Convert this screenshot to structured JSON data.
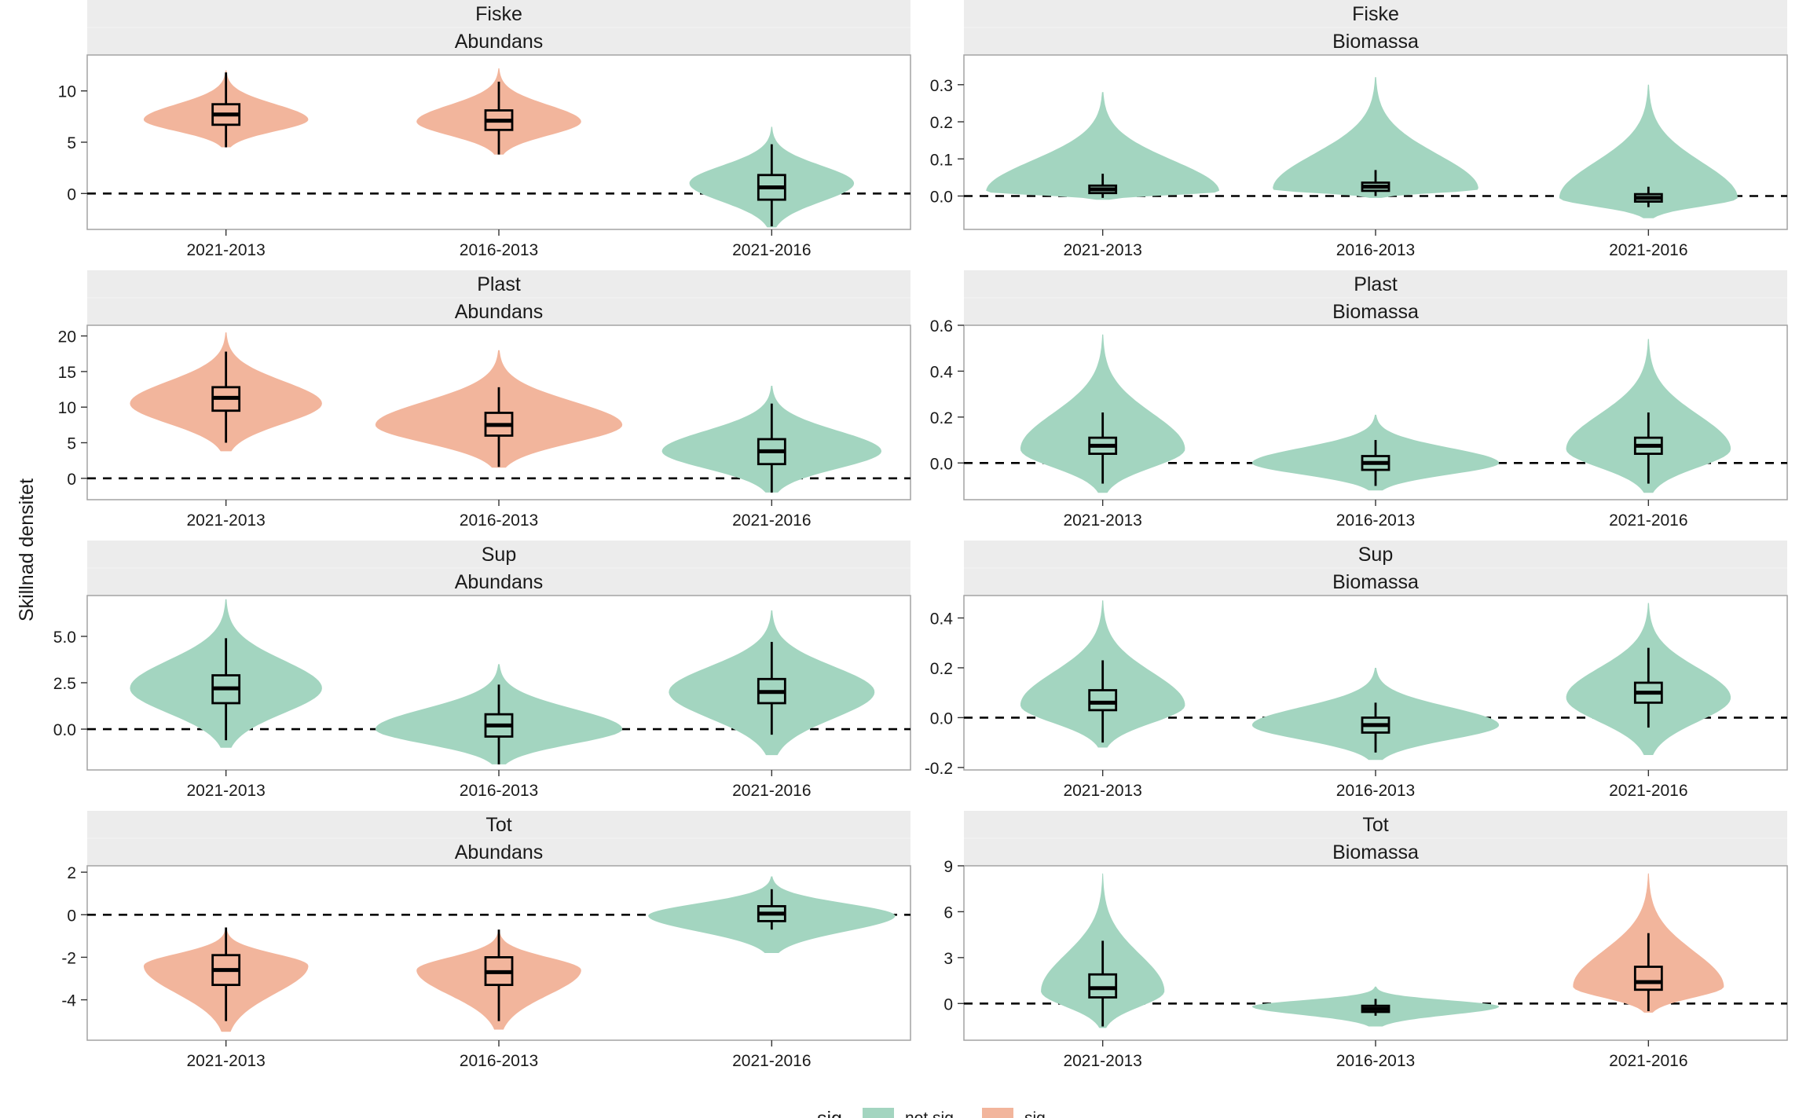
{
  "y_axis_label": "Skillnad densitet",
  "legend": {
    "title": "sig",
    "entries": [
      {
        "label": "not sig",
        "color": "#a3d5c0"
      },
      {
        "label": "sig",
        "color": "#f2b59c"
      }
    ]
  },
  "colors": {
    "not_sig": "#a3d5c0",
    "sig": "#f2b59c"
  },
  "chart_data": [
    {
      "type": "violin",
      "strip": [
        "Fiske",
        "Abundans"
      ],
      "ylim": [
        -3.5,
        13.5
      ],
      "yticks": [
        0,
        5,
        10
      ],
      "ytick_labels": [
        "0",
        "5",
        "10"
      ],
      "categories": [
        "2021-2013",
        "2016-2013",
        "2021-2016"
      ],
      "series": [
        {
          "category": "2021-2013",
          "sig": "sig",
          "min": 4.5,
          "q1": 6.7,
          "median": 7.7,
          "q3": 8.7,
          "max": 11.8,
          "v_min": 4.5,
          "v_max": 12.0,
          "mode": 7.2,
          "width": 0.6
        },
        {
          "category": "2016-2013",
          "sig": "sig",
          "min": 3.8,
          "q1": 6.2,
          "median": 7.1,
          "q3": 8.1,
          "max": 10.9,
          "v_min": 3.8,
          "v_max": 12.2,
          "mode": 7.0,
          "width": 0.6
        },
        {
          "category": "2021-2016",
          "sig": "not sig",
          "min": -3.2,
          "q1": -0.6,
          "median": 0.6,
          "q3": 1.8,
          "max": 4.8,
          "v_min": -3.3,
          "v_max": 6.5,
          "mode": 1.0,
          "width": 0.6
        }
      ]
    },
    {
      "type": "violin",
      "strip": [
        "Fiske",
        "Biomassa"
      ],
      "ylim": [
        -0.09,
        0.38
      ],
      "yticks": [
        0.0,
        0.1,
        0.2,
        0.3
      ],
      "ytick_labels": [
        "0.0",
        "0.1",
        "0.2",
        "0.3"
      ],
      "categories": [
        "2021-2013",
        "2016-2013",
        "2021-2016"
      ],
      "series": [
        {
          "category": "2021-2013",
          "sig": "not sig",
          "min": -0.005,
          "q1": 0.008,
          "median": 0.018,
          "q3": 0.028,
          "max": 0.06,
          "v_min": -0.01,
          "v_max": 0.28,
          "mode": 0.012,
          "width": 0.85
        },
        {
          "category": "2016-2013",
          "sig": "not sig",
          "min": 0.0,
          "q1": 0.014,
          "median": 0.025,
          "q3": 0.036,
          "max": 0.07,
          "v_min": -0.005,
          "v_max": 0.32,
          "mode": 0.018,
          "width": 0.75
        },
        {
          "category": "2021-2016",
          "sig": "not sig",
          "min": -0.03,
          "q1": -0.015,
          "median": -0.005,
          "q3": 0.005,
          "max": 0.025,
          "v_min": -0.06,
          "v_max": 0.3,
          "mode": -0.005,
          "width": 0.65
        }
      ]
    },
    {
      "type": "violin",
      "strip": [
        "Plast",
        "Abundans"
      ],
      "ylim": [
        -3,
        21.5
      ],
      "yticks": [
        0,
        5,
        10,
        15,
        20
      ],
      "ytick_labels": [
        "0",
        "5",
        "10",
        "15",
        "20"
      ],
      "categories": [
        "2021-2013",
        "2016-2013",
        "2021-2016"
      ],
      "series": [
        {
          "category": "2021-2013",
          "sig": "sig",
          "min": 5.0,
          "q1": 9.5,
          "median": 11.3,
          "q3": 12.8,
          "max": 17.8,
          "v_min": 3.8,
          "v_max": 20.5,
          "mode": 10.5,
          "width": 0.7
        },
        {
          "category": "2016-2013",
          "sig": "sig",
          "min": 1.6,
          "q1": 6.0,
          "median": 7.5,
          "q3": 9.2,
          "max": 12.8,
          "v_min": 1.5,
          "v_max": 18.0,
          "mode": 7.5,
          "width": 0.9
        },
        {
          "category": "2021-2016",
          "sig": "not sig",
          "min": -2.0,
          "q1": 2.0,
          "median": 3.8,
          "q3": 5.5,
          "max": 10.5,
          "v_min": -2.0,
          "v_max": 13.0,
          "mode": 3.8,
          "width": 0.8
        }
      ]
    },
    {
      "type": "violin",
      "strip": [
        "Plast",
        "Biomassa"
      ],
      "ylim": [
        -0.16,
        0.6
      ],
      "yticks": [
        0.0,
        0.2,
        0.4,
        0.6
      ],
      "ytick_labels": [
        "0.0",
        "0.2",
        "0.4",
        "0.6"
      ],
      "categories": [
        "2021-2013",
        "2016-2013",
        "2021-2016"
      ],
      "series": [
        {
          "category": "2021-2013",
          "sig": "not sig",
          "min": -0.09,
          "q1": 0.04,
          "median": 0.075,
          "q3": 0.11,
          "max": 0.22,
          "v_min": -0.13,
          "v_max": 0.56,
          "mode": 0.06,
          "width": 0.6
        },
        {
          "category": "2016-2013",
          "sig": "not sig",
          "min": -0.1,
          "q1": -0.03,
          "median": 0.0,
          "q3": 0.03,
          "max": 0.1,
          "v_min": -0.12,
          "v_max": 0.21,
          "mode": 0.0,
          "width": 0.9
        },
        {
          "category": "2021-2016",
          "sig": "not sig",
          "min": -0.09,
          "q1": 0.04,
          "median": 0.075,
          "q3": 0.11,
          "max": 0.22,
          "v_min": -0.13,
          "v_max": 0.54,
          "mode": 0.06,
          "width": 0.6
        }
      ]
    },
    {
      "type": "violin",
      "strip": [
        "Sup",
        "Abundans"
      ],
      "ylim": [
        -2.2,
        7.2
      ],
      "yticks": [
        0.0,
        2.5,
        5.0
      ],
      "ytick_labels": [
        "0.0",
        "2.5",
        "5.0"
      ],
      "categories": [
        "2021-2013",
        "2016-2013",
        "2021-2016"
      ],
      "series": [
        {
          "category": "2021-2013",
          "sig": "not sig",
          "min": -0.6,
          "q1": 1.4,
          "median": 2.2,
          "q3": 2.9,
          "max": 4.9,
          "v_min": -1.0,
          "v_max": 7.0,
          "mode": 2.2,
          "width": 0.7
        },
        {
          "category": "2016-2013",
          "sig": "not sig",
          "min": -1.9,
          "q1": -0.4,
          "median": 0.2,
          "q3": 0.8,
          "max": 2.4,
          "v_min": -1.9,
          "v_max": 3.5,
          "mode": 0.0,
          "width": 0.9
        },
        {
          "category": "2021-2016",
          "sig": "not sig",
          "min": -0.3,
          "q1": 1.4,
          "median": 2.0,
          "q3": 2.7,
          "max": 4.7,
          "v_min": -1.4,
          "v_max": 6.4,
          "mode": 2.0,
          "width": 0.75
        }
      ]
    },
    {
      "type": "violin",
      "strip": [
        "Sup",
        "Biomassa"
      ],
      "ylim": [
        -0.21,
        0.49
      ],
      "yticks": [
        -0.2,
        0.0,
        0.2,
        0.4
      ],
      "ytick_labels": [
        "-0.2",
        "0.0",
        "0.2",
        "0.4"
      ],
      "categories": [
        "2021-2013",
        "2016-2013",
        "2021-2016"
      ],
      "series": [
        {
          "category": "2021-2013",
          "sig": "not sig",
          "min": -0.1,
          "q1": 0.03,
          "median": 0.06,
          "q3": 0.11,
          "max": 0.23,
          "v_min": -0.12,
          "v_max": 0.47,
          "mode": 0.05,
          "width": 0.6
        },
        {
          "category": "2016-2013",
          "sig": "not sig",
          "min": -0.14,
          "q1": -0.06,
          "median": -0.03,
          "q3": 0.0,
          "max": 0.06,
          "v_min": -0.17,
          "v_max": 0.2,
          "mode": -0.03,
          "width": 0.9
        },
        {
          "category": "2021-2016",
          "sig": "not sig",
          "min": -0.04,
          "q1": 0.06,
          "median": 0.1,
          "q3": 0.14,
          "max": 0.28,
          "v_min": -0.15,
          "v_max": 0.46,
          "mode": 0.08,
          "width": 0.6
        }
      ]
    },
    {
      "type": "violin",
      "strip": [
        "Tot",
        "Abundans"
      ],
      "ylim": [
        -5.9,
        2.3
      ],
      "yticks": [
        -4,
        -2,
        0,
        2
      ],
      "ytick_labels": [
        "-4",
        "-2",
        "0",
        "2"
      ],
      "categories": [
        "2021-2013",
        "2016-2013",
        "2021-2016"
      ],
      "series": [
        {
          "category": "2021-2013",
          "sig": "sig",
          "min": -5.0,
          "q1": -3.3,
          "median": -2.6,
          "q3": -1.9,
          "max": -0.6,
          "v_min": -5.5,
          "v_max": -0.6,
          "mode": -2.4,
          "width": 0.6
        },
        {
          "category": "2016-2013",
          "sig": "sig",
          "min": -5.0,
          "q1": -3.3,
          "median": -2.7,
          "q3": -2.0,
          "max": -0.7,
          "v_min": -5.4,
          "v_max": -0.7,
          "mode": -2.6,
          "width": 0.6
        },
        {
          "category": "2021-2016",
          "sig": "not sig",
          "min": -0.7,
          "q1": -0.3,
          "median": 0.05,
          "q3": 0.4,
          "max": 1.2,
          "v_min": -1.8,
          "v_max": 1.8,
          "mode": -0.05,
          "width": 0.9
        }
      ]
    },
    {
      "type": "violin",
      "strip": [
        "Tot",
        "Biomassa"
      ],
      "ylim": [
        -2.4,
        9.0
      ],
      "yticks": [
        0,
        3,
        6,
        9
      ],
      "ytick_labels": [
        "0",
        "3",
        "6",
        "9"
      ],
      "categories": [
        "2021-2013",
        "2016-2013",
        "2021-2016"
      ],
      "series": [
        {
          "category": "2021-2013",
          "sig": "not sig",
          "min": -1.5,
          "q1": 0.4,
          "median": 1.0,
          "q3": 1.9,
          "max": 4.1,
          "v_min": -1.6,
          "v_max": 8.5,
          "mode": 0.8,
          "width": 0.45
        },
        {
          "category": "2016-2013",
          "sig": "not sig",
          "min": -0.8,
          "q1": -0.55,
          "median": -0.35,
          "q3": -0.15,
          "max": 0.3,
          "v_min": -1.5,
          "v_max": 1.1,
          "mode": -0.2,
          "width": 0.9
        },
        {
          "category": "2021-2016",
          "sig": "sig",
          "min": -0.5,
          "q1": 0.9,
          "median": 1.4,
          "q3": 2.4,
          "max": 4.6,
          "v_min": -0.6,
          "v_max": 8.5,
          "mode": 1.1,
          "width": 0.55
        }
      ]
    }
  ]
}
